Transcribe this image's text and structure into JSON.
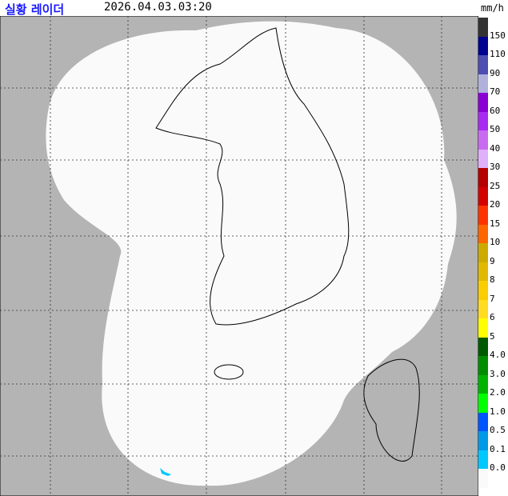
{
  "header": {
    "title": "실황 레이더",
    "datetime": "2026.04.03.03:20",
    "unit": "mm/h"
  },
  "map": {
    "background_color": "#b4b4b4",
    "coverage_color": "#fafafa",
    "boundary_color": "#000000"
  },
  "legend": {
    "colors": [
      "#333333",
      "#000390",
      "#4c4eb1",
      "#b0b2dc",
      "#8a00d4",
      "#a72bf0",
      "#c86bf0",
      "#e0b0fa",
      "#b40000",
      "#d20000",
      "#ff3300",
      "#ff6600",
      "#ccaa00",
      "#e0b900",
      "#f9cd00",
      "#ffdc1f",
      "#ffff00",
      "#005a00",
      "#008c00",
      "#00b300",
      "#00ff00",
      "#0055ff",
      "#0099e6",
      "#00c8ff",
      "#fafafa"
    ],
    "labels": [
      "150",
      "110",
      "90",
      "70",
      "60",
      "50",
      "40",
      "30",
      "25",
      "20",
      "15",
      "10",
      "9",
      "8",
      "7",
      "6",
      "5",
      "4.0",
      "3.0",
      "2.0",
      "1.0",
      "0.5",
      "0.1",
      "0.0"
    ]
  }
}
